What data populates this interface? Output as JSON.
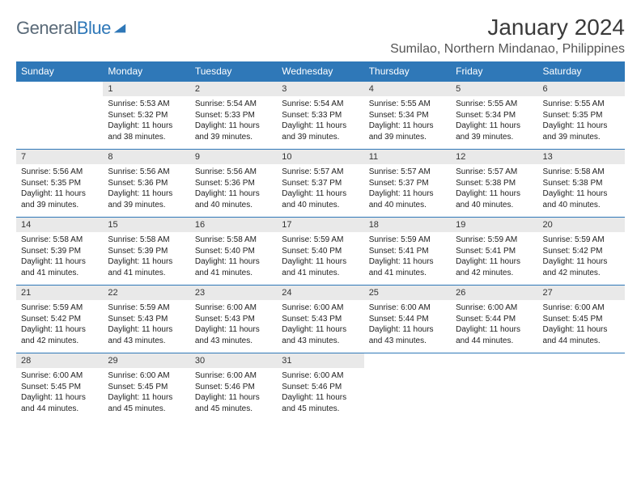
{
  "brand": {
    "word1": "General",
    "word2": "Blue",
    "color1": "#5a6a78",
    "color2": "#2f78b8"
  },
  "title": "January 2024",
  "location": "Sumilao, Northern Mindanao, Philippines",
  "day_headers": [
    "Sunday",
    "Monday",
    "Tuesday",
    "Wednesday",
    "Thursday",
    "Friday",
    "Saturday"
  ],
  "header_bg": "#2f78b8",
  "header_fg": "#ffffff",
  "row_border": "#2f78b8",
  "daynum_bg": "#e9e9e9",
  "weeks": [
    {
      "nums": [
        "",
        "1",
        "2",
        "3",
        "4",
        "5",
        "6"
      ],
      "cells": [
        "",
        "Sunrise: 5:53 AM\nSunset: 5:32 PM\nDaylight: 11 hours and 38 minutes.",
        "Sunrise: 5:54 AM\nSunset: 5:33 PM\nDaylight: 11 hours and 39 minutes.",
        "Sunrise: 5:54 AM\nSunset: 5:33 PM\nDaylight: 11 hours and 39 minutes.",
        "Sunrise: 5:55 AM\nSunset: 5:34 PM\nDaylight: 11 hours and 39 minutes.",
        "Sunrise: 5:55 AM\nSunset: 5:34 PM\nDaylight: 11 hours and 39 minutes.",
        "Sunrise: 5:55 AM\nSunset: 5:35 PM\nDaylight: 11 hours and 39 minutes."
      ]
    },
    {
      "nums": [
        "7",
        "8",
        "9",
        "10",
        "11",
        "12",
        "13"
      ],
      "cells": [
        "Sunrise: 5:56 AM\nSunset: 5:35 PM\nDaylight: 11 hours and 39 minutes.",
        "Sunrise: 5:56 AM\nSunset: 5:36 PM\nDaylight: 11 hours and 39 minutes.",
        "Sunrise: 5:56 AM\nSunset: 5:36 PM\nDaylight: 11 hours and 40 minutes.",
        "Sunrise: 5:57 AM\nSunset: 5:37 PM\nDaylight: 11 hours and 40 minutes.",
        "Sunrise: 5:57 AM\nSunset: 5:37 PM\nDaylight: 11 hours and 40 minutes.",
        "Sunrise: 5:57 AM\nSunset: 5:38 PM\nDaylight: 11 hours and 40 minutes.",
        "Sunrise: 5:58 AM\nSunset: 5:38 PM\nDaylight: 11 hours and 40 minutes."
      ]
    },
    {
      "nums": [
        "14",
        "15",
        "16",
        "17",
        "18",
        "19",
        "20"
      ],
      "cells": [
        "Sunrise: 5:58 AM\nSunset: 5:39 PM\nDaylight: 11 hours and 41 minutes.",
        "Sunrise: 5:58 AM\nSunset: 5:39 PM\nDaylight: 11 hours and 41 minutes.",
        "Sunrise: 5:58 AM\nSunset: 5:40 PM\nDaylight: 11 hours and 41 minutes.",
        "Sunrise: 5:59 AM\nSunset: 5:40 PM\nDaylight: 11 hours and 41 minutes.",
        "Sunrise: 5:59 AM\nSunset: 5:41 PM\nDaylight: 11 hours and 41 minutes.",
        "Sunrise: 5:59 AM\nSunset: 5:41 PM\nDaylight: 11 hours and 42 minutes.",
        "Sunrise: 5:59 AM\nSunset: 5:42 PM\nDaylight: 11 hours and 42 minutes."
      ]
    },
    {
      "nums": [
        "21",
        "22",
        "23",
        "24",
        "25",
        "26",
        "27"
      ],
      "cells": [
        "Sunrise: 5:59 AM\nSunset: 5:42 PM\nDaylight: 11 hours and 42 minutes.",
        "Sunrise: 5:59 AM\nSunset: 5:43 PM\nDaylight: 11 hours and 43 minutes.",
        "Sunrise: 6:00 AM\nSunset: 5:43 PM\nDaylight: 11 hours and 43 minutes.",
        "Sunrise: 6:00 AM\nSunset: 5:43 PM\nDaylight: 11 hours and 43 minutes.",
        "Sunrise: 6:00 AM\nSunset: 5:44 PM\nDaylight: 11 hours and 43 minutes.",
        "Sunrise: 6:00 AM\nSunset: 5:44 PM\nDaylight: 11 hours and 44 minutes.",
        "Sunrise: 6:00 AM\nSunset: 5:45 PM\nDaylight: 11 hours and 44 minutes."
      ]
    },
    {
      "nums": [
        "28",
        "29",
        "30",
        "31",
        "",
        "",
        ""
      ],
      "cells": [
        "Sunrise: 6:00 AM\nSunset: 5:45 PM\nDaylight: 11 hours and 44 minutes.",
        "Sunrise: 6:00 AM\nSunset: 5:45 PM\nDaylight: 11 hours and 45 minutes.",
        "Sunrise: 6:00 AM\nSunset: 5:46 PM\nDaylight: 11 hours and 45 minutes.",
        "Sunrise: 6:00 AM\nSunset: 5:46 PM\nDaylight: 11 hours and 45 minutes.",
        "",
        "",
        ""
      ]
    }
  ]
}
